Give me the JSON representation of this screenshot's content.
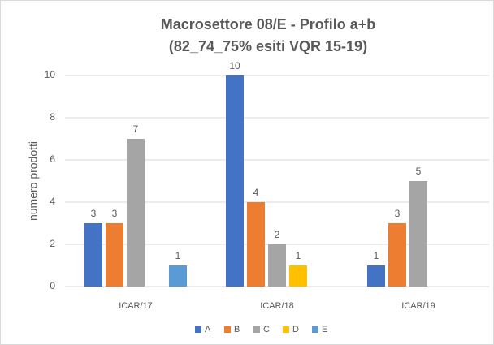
{
  "chart_data": {
    "type": "bar",
    "title": [
      "Macrosettore 08/E - Profilo a+b",
      "(82_74_75% esiti VQR 15-19)"
    ],
    "y_label": "numero prodotti",
    "categories": [
      "ICAR/17",
      "ICAR/18",
      "ICAR/19"
    ],
    "series": [
      {
        "name": "A",
        "color": "#4472c4",
        "values": [
          3,
          10,
          1
        ]
      },
      {
        "name": "B",
        "color": "#ed7d31",
        "values": [
          3,
          4,
          3
        ]
      },
      {
        "name": "C",
        "color": "#a5a5a5",
        "values": [
          7,
          2,
          5
        ]
      },
      {
        "name": "D",
        "color": "#ffc000",
        "values": [
          null,
          1,
          null
        ]
      },
      {
        "name": "E",
        "color": "#5b9bd5",
        "values": [
          1,
          null,
          null
        ]
      }
    ],
    "ylim": [
      0,
      10
    ],
    "yticks": [
      0,
      2,
      4,
      6,
      8,
      10
    ],
    "grid": true,
    "legend": "bottom"
  }
}
